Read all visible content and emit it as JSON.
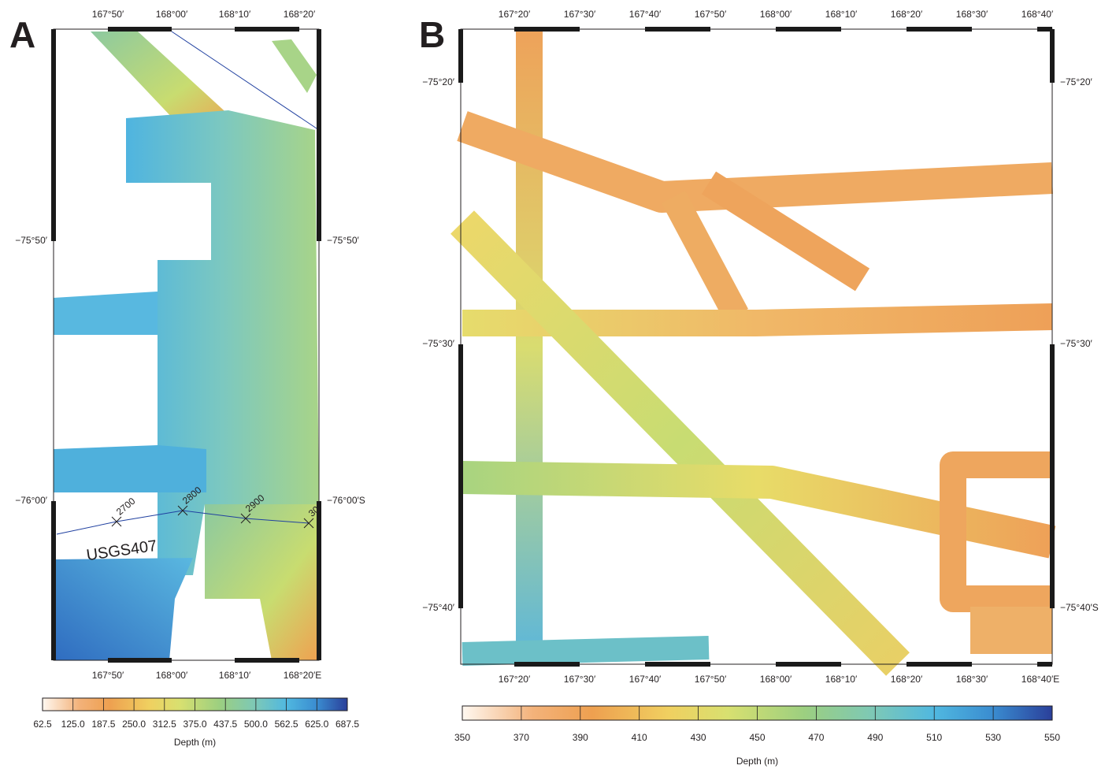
{
  "panels": [
    {
      "label": "A",
      "top_ticks": [
        "167°50′",
        "168°00′",
        "168°10′",
        "168°20′"
      ],
      "bottom_ticks": [
        "167°50′",
        "168°00′",
        "168°10′",
        "168°20′E"
      ],
      "left_ticks": [
        "−75°50′",
        "−76°00′"
      ],
      "right_ticks": [
        "−75°50′",
        "−76°00′S"
      ],
      "track": {
        "name": "USGS407",
        "shotpoints": [
          "2700",
          "2800",
          "2900",
          "30"
        ]
      },
      "colorbar": {
        "ticks": [
          62.5,
          {
            "value": 125,
            "label": "125.0"
          },
          187.5,
          {
            "value": 250,
            "label": "250.0"
          },
          312.5,
          {
            "value": 375,
            "label": "375.0"
          },
          437.5,
          {
            "value": 500,
            "label": "500.0"
          },
          562.5,
          {
            "value": 625,
            "label": "625.0"
          },
          687.5
        ],
        "label": "Depth (m)"
      }
    },
    {
      "label": "B",
      "top_ticks": [
        "167°20′",
        "167°30′",
        "167°40′",
        "167°50′",
        "168°00′",
        "168°10′",
        "168°20′",
        "168°30′",
        "168°40′"
      ],
      "bottom_ticks": [
        "167°20′",
        "167°30′",
        "167°40′",
        "167°50′",
        "168°00′",
        "168°10′",
        "168°20′",
        "168°30′",
        "168°40′E"
      ],
      "left_ticks": [
        "−75°20′",
        "−75°30′",
        "−75°40′"
      ],
      "right_ticks": [
        "−75°20′",
        "−75°30′",
        "−75°40′S"
      ],
      "colorbar": {
        "ticks": [
          350,
          370,
          390,
          410,
          430,
          450,
          470,
          490,
          510,
          530,
          550
        ],
        "label": "Depth (m)"
      }
    }
  ]
}
